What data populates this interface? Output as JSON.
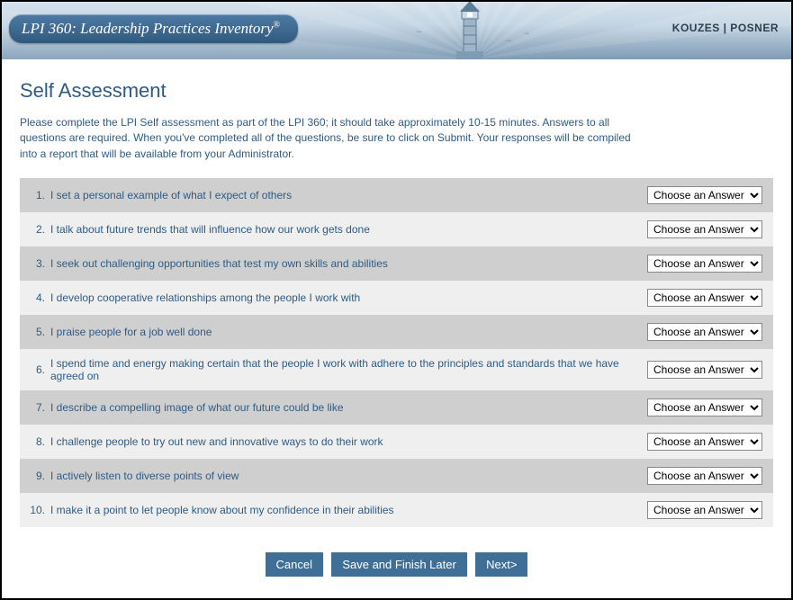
{
  "banner": {
    "title_html": "LPI 360: Leadership Practices Inventory",
    "authors": "KOUZES | POSNER"
  },
  "page": {
    "title": "Self Assessment",
    "intro": "Please complete the LPI Self assessment as part of the LPI 360; it should take approximately 10-15 minutes. Answers to all questions are required. When you've completed all of the questions, be sure to click on Submit. Your responses will be compiled into a report that will be available from your Administrator."
  },
  "answer_placeholder": "Choose an Answer",
  "questions": [
    {
      "n": "1.",
      "text": "I set a personal example of what I expect of others"
    },
    {
      "n": "2.",
      "text": "I talk about future trends that will influence how our work gets done"
    },
    {
      "n": "3.",
      "text": "I seek out challenging opportunities that test my own skills and abilities"
    },
    {
      "n": "4.",
      "text": "I develop cooperative relationships among the people I work with"
    },
    {
      "n": "5.",
      "text": "I praise people for a job well done"
    },
    {
      "n": "6.",
      "text": "I spend time and energy making certain that the people I work with adhere to the principles and standards that we have agreed on"
    },
    {
      "n": "7.",
      "text": "I describe a compelling image of what our future could be like"
    },
    {
      "n": "8.",
      "text": "I challenge people to try out new and innovative ways to do their work"
    },
    {
      "n": "9.",
      "text": "I actively listen to diverse points of view"
    },
    {
      "n": "10.",
      "text": "I make it a point to let people know about my confidence in their abilities"
    }
  ],
  "buttons": {
    "cancel": "Cancel",
    "save": "Save and Finish Later",
    "next": "Next>"
  },
  "style": {
    "row_odd_bg": "#cfcfcf",
    "row_even_bg": "#efefef",
    "accent": "#2d5b86",
    "button_bg": "#3f6f96"
  }
}
